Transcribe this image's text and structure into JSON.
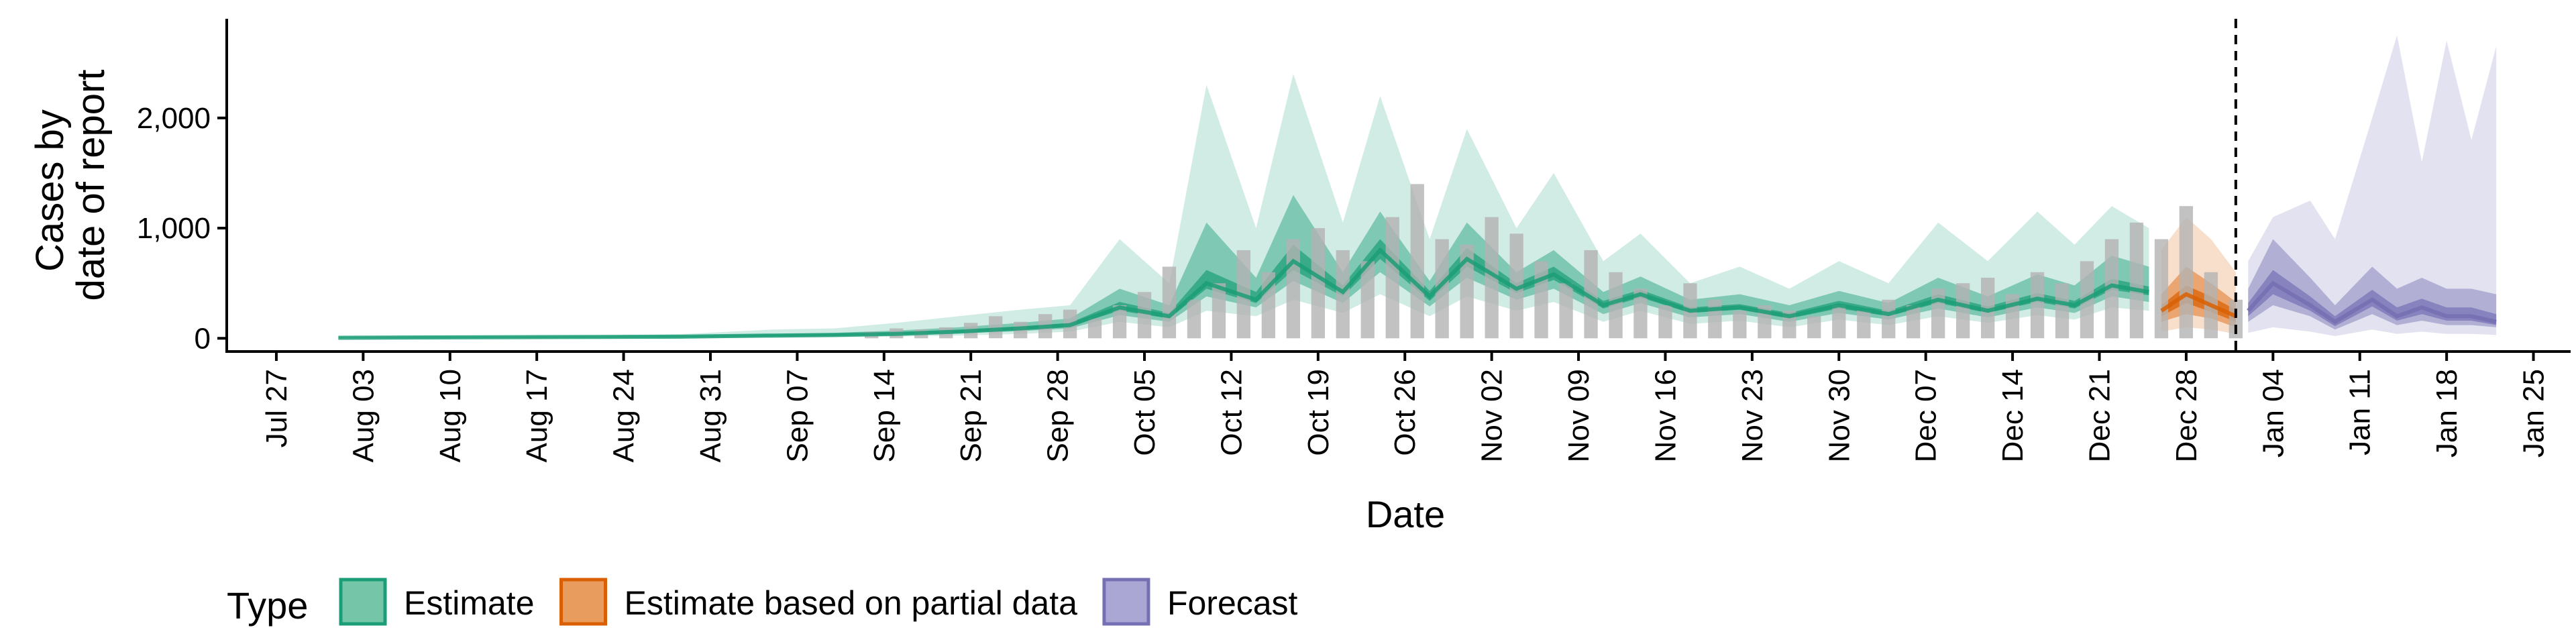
{
  "chart_data": {
    "type": "area",
    "xlabel": "Date",
    "ylabel": [
      "Cases by",
      "date of report"
    ],
    "x_range": [
      "2020-07-23",
      "2021-01-28"
    ],
    "ylim": [
      -120,
      2900
    ],
    "y_ticks": [
      0,
      1000,
      2000
    ],
    "y_tick_labels": [
      "0",
      "1,000",
      "2,000"
    ],
    "x_ticks": [
      "2020-07-27",
      "2020-08-03",
      "2020-08-10",
      "2020-08-17",
      "2020-08-24",
      "2020-08-31",
      "2020-09-07",
      "2020-09-14",
      "2020-09-21",
      "2020-09-28",
      "2020-10-05",
      "2020-10-12",
      "2020-10-19",
      "2020-10-26",
      "2020-11-02",
      "2020-11-09",
      "2020-11-16",
      "2020-11-23",
      "2020-11-30",
      "2020-12-07",
      "2020-12-14",
      "2020-12-21",
      "2020-12-28",
      "2021-01-04",
      "2021-01-11",
      "2021-01-18",
      "2021-01-25"
    ],
    "x_tick_labels": [
      "Jul 27",
      "Aug 03",
      "Aug 10",
      "Aug 17",
      "Aug 24",
      "Aug 31",
      "Sep 07",
      "Sep 14",
      "Sep 21",
      "Sep 28",
      "Oct 05",
      "Oct 12",
      "Oct 19",
      "Oct 26",
      "Nov 02",
      "Nov 09",
      "Nov 16",
      "Nov 23",
      "Nov 30",
      "Dec 07",
      "Dec 14",
      "Dec 21",
      "Dec 28",
      "Jan 04",
      "Jan 11",
      "Jan 18",
      "Jan 25"
    ],
    "forecast_start": "2021-01-01",
    "grid": false,
    "legend": {
      "position": "bottom-left",
      "title": "Type",
      "entries": [
        {
          "label": "Estimate",
          "fill": "#75c6a9",
          "stroke": "#1b9e77"
        },
        {
          "label": "Estimate based on partial data",
          "fill": "#e89d5e",
          "stroke": "#d95f02"
        },
        {
          "label": "Forecast",
          "fill": "#aaa7d4",
          "stroke": "#7570b3"
        }
      ]
    },
    "colors": {
      "estimate": "#1b9e77",
      "partial": "#d95f02",
      "forecast": "#7570b3",
      "observed_bar": "#b3b3b3",
      "axis": "#000000"
    },
    "band_opacity": [
      0.2,
      0.45,
      0.7
    ],
    "series": [
      {
        "name": "Estimate",
        "x": [
          "2020-08-01",
          "2020-08-08",
          "2020-08-15",
          "2020-08-22",
          "2020-08-29",
          "2020-09-05",
          "2020-09-10",
          "2020-09-15",
          "2020-09-20",
          "2020-09-25",
          "2020-09-29",
          "2020-10-03",
          "2020-10-07",
          "2020-10-10",
          "2020-10-14",
          "2020-10-17",
          "2020-10-21",
          "2020-10-24",
          "2020-10-28",
          "2020-10-31",
          "2020-11-04",
          "2020-11-07",
          "2020-11-11",
          "2020-11-14",
          "2020-11-18",
          "2020-11-22",
          "2020-11-26",
          "2020-11-30",
          "2020-12-04",
          "2020-12-08",
          "2020-12-12",
          "2020-12-16",
          "2020-12-19",
          "2020-12-22",
          "2020-12-25"
        ],
        "median": [
          5,
          8,
          10,
          12,
          15,
          25,
          30,
          40,
          60,
          90,
          120,
          280,
          200,
          500,
          350,
          700,
          420,
          800,
          380,
          720,
          450,
          580,
          300,
          400,
          250,
          280,
          200,
          300,
          220,
          350,
          250,
          360,
          300,
          480,
          420
        ],
        "lower_90": [
          0,
          0,
          0,
          0,
          0,
          5,
          10,
          15,
          25,
          40,
          60,
          150,
          100,
          250,
          200,
          350,
          230,
          400,
          200,
          380,
          250,
          330,
          150,
          250,
          130,
          160,
          100,
          170,
          120,
          200,
          140,
          210,
          170,
          280,
          250
        ],
        "upper_90": [
          15,
          20,
          22,
          25,
          40,
          80,
          90,
          140,
          200,
          260,
          300,
          900,
          500,
          2300,
          1000,
          2400,
          1050,
          2200,
          900,
          1900,
          1000,
          1500,
          700,
          950,
          500,
          650,
          450,
          700,
          500,
          1050,
          700,
          1150,
          850,
          1200,
          1000
        ],
        "lower_50": [
          2,
          4,
          5,
          6,
          8,
          15,
          20,
          28,
          45,
          65,
          90,
          210,
          150,
          380,
          280,
          520,
          320,
          600,
          290,
          550,
          350,
          450,
          220,
          320,
          190,
          220,
          150,
          230,
          170,
          270,
          190,
          280,
          230,
          380,
          330
        ],
        "upper_50": [
          8,
          12,
          15,
          18,
          25,
          40,
          50,
          70,
          100,
          140,
          180,
          450,
          300,
          1050,
          550,
          1300,
          600,
          1150,
          520,
          1050,
          600,
          800,
          420,
          560,
          350,
          400,
          300,
          430,
          320,
          550,
          380,
          580,
          480,
          750,
          650
        ],
        "lower_20": [
          4,
          6,
          8,
          10,
          12,
          20,
          26,
          35,
          55,
          80,
          110,
          250,
          180,
          450,
          320,
          620,
          380,
          720,
          340,
          650,
          410,
          530,
          270,
          370,
          230,
          260,
          180,
          270,
          200,
          320,
          230,
          330,
          270,
          440,
          390
        ],
        "upper_20": [
          6,
          10,
          12,
          14,
          18,
          30,
          36,
          50,
          70,
          105,
          140,
          330,
          230,
          620,
          420,
          850,
          480,
          900,
          430,
          820,
          500,
          650,
          340,
          440,
          280,
          310,
          230,
          340,
          250,
          400,
          290,
          410,
          340,
          540,
          470
        ]
      },
      {
        "name": "Estimate based on partial data",
        "x": [
          "2020-12-26",
          "2020-12-28",
          "2020-12-30",
          "2021-01-01"
        ],
        "median": [
          250,
          400,
          300,
          200
        ],
        "lower_90": [
          60,
          100,
          80,
          40
        ],
        "upper_90": [
          800,
          1100,
          900,
          600
        ],
        "lower_50": [
          150,
          220,
          180,
          100
        ],
        "upper_50": [
          400,
          650,
          500,
          330
        ],
        "lower_20": [
          200,
          320,
          240,
          150
        ],
        "upper_20": [
          300,
          480,
          380,
          260
        ]
      },
      {
        "name": "Forecast",
        "x": [
          "2021-01-02",
          "2021-01-04",
          "2021-01-07",
          "2021-01-09",
          "2021-01-12",
          "2021-01-14",
          "2021-01-16",
          "2021-01-18",
          "2021-01-20",
          "2021-01-22"
        ],
        "median": [
          250,
          500,
          300,
          150,
          350,
          200,
          280,
          200,
          200,
          150
        ],
        "lower_90": [
          50,
          100,
          60,
          20,
          80,
          40,
          60,
          40,
          40,
          30
        ],
        "upper_90": [
          700,
          1100,
          1250,
          900,
          2000,
          2750,
          1600,
          2700,
          1800,
          2650
        ],
        "lower_50": [
          150,
          300,
          200,
          80,
          220,
          120,
          160,
          120,
          120,
          100
        ],
        "upper_50": [
          450,
          900,
          550,
          300,
          650,
          450,
          550,
          450,
          450,
          400
        ],
        "lower_20": [
          200,
          400,
          250,
          110,
          290,
          160,
          220,
          160,
          160,
          120
        ],
        "upper_20": [
          320,
          620,
          380,
          200,
          440,
          280,
          360,
          280,
          280,
          220
        ]
      }
    ],
    "observed": {
      "dates": [
        "2020-09-13",
        "2020-09-15",
        "2020-09-17",
        "2020-09-19",
        "2020-09-21",
        "2020-09-23",
        "2020-09-25",
        "2020-09-27",
        "2020-09-29",
        "2020-10-01",
        "2020-10-03",
        "2020-10-05",
        "2020-10-07",
        "2020-10-09",
        "2020-10-11",
        "2020-10-13",
        "2020-10-15",
        "2020-10-17",
        "2020-10-19",
        "2020-10-21",
        "2020-10-23",
        "2020-10-25",
        "2020-10-27",
        "2020-10-29",
        "2020-10-31",
        "2020-11-02",
        "2020-11-04",
        "2020-11-06",
        "2020-11-08",
        "2020-11-10",
        "2020-11-12",
        "2020-11-14",
        "2020-11-16",
        "2020-11-18",
        "2020-11-20",
        "2020-11-22",
        "2020-11-24",
        "2020-11-26",
        "2020-11-28",
        "2020-11-30",
        "2020-12-02",
        "2020-12-04",
        "2020-12-06",
        "2020-12-08",
        "2020-12-10",
        "2020-12-12",
        "2020-12-14",
        "2020-12-16",
        "2020-12-18",
        "2020-12-20",
        "2020-12-22",
        "2020-12-24",
        "2020-12-26",
        "2020-12-28",
        "2020-12-30",
        "2021-01-01"
      ],
      "values": [
        60,
        90,
        80,
        100,
        140,
        200,
        150,
        220,
        260,
        180,
        300,
        420,
        650,
        350,
        500,
        800,
        600,
        900,
        1000,
        800,
        700,
        1100,
        1400,
        900,
        850,
        1100,
        950,
        700,
        500,
        800,
        600,
        450,
        300,
        500,
        350,
        250,
        300,
        250,
        200,
        300,
        250,
        350,
        300,
        450,
        500,
        550,
        400,
        600,
        500,
        700,
        900,
        1050,
        900,
        1200,
        600,
        350
      ]
    }
  }
}
